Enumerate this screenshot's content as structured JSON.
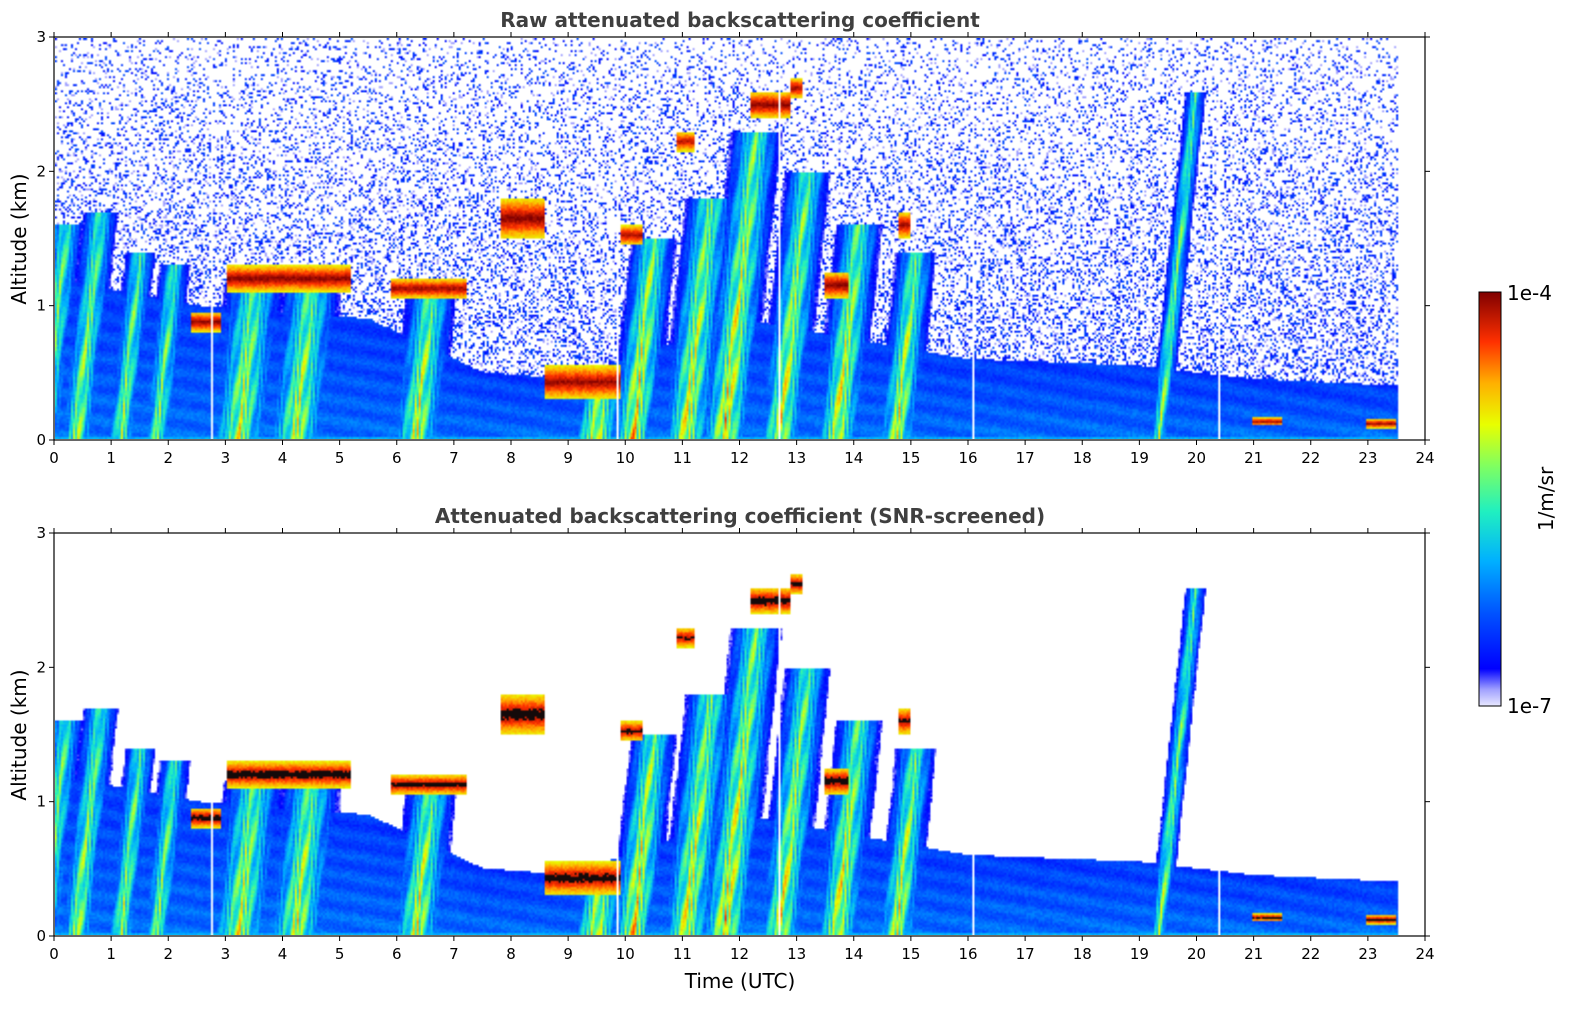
{
  "chart_data": [
    {
      "type": "heatmap",
      "title": "Raw attenuated backscattering coefficient",
      "xlabel": "",
      "ylabel": "Altitude (km)",
      "xlim": [
        0,
        24
      ],
      "ylim": [
        0,
        3
      ],
      "xticks": [
        "0",
        "1",
        "2",
        "3",
        "4",
        "5",
        "6",
        "7",
        "8",
        "9",
        "10",
        "11",
        "12",
        "13",
        "14",
        "15",
        "16",
        "17",
        "18",
        "19",
        "20",
        "21",
        "22",
        "23",
        "24"
      ],
      "yticks": [
        "0",
        "1",
        "2",
        "3"
      ],
      "grid": false,
      "noise": "high",
      "snr_screened": false
    },
    {
      "type": "heatmap",
      "title": "Attenuated backscattering coefficient (SNR-screened)",
      "xlabel": "Time (UTC)",
      "ylabel": "Altitude (km)",
      "xlim": [
        0,
        24
      ],
      "ylim": [
        0,
        3
      ],
      "xticks": [
        "0",
        "1",
        "2",
        "3",
        "4",
        "5",
        "6",
        "7",
        "8",
        "9",
        "10",
        "11",
        "12",
        "13",
        "14",
        "15",
        "16",
        "17",
        "18",
        "19",
        "20",
        "21",
        "22",
        "23",
        "24"
      ],
      "yticks": [
        "0",
        "1",
        "2",
        "3"
      ],
      "grid": false,
      "noise": "screened",
      "snr_screened": true
    }
  ],
  "colorbar": {
    "label": "1/m/sr",
    "min_label": "1e-7",
    "max_label": "1e-4",
    "scale": "log",
    "colormap": "jet"
  },
  "field": {
    "data_end_hour": 23.55,
    "gaps_hours": [
      2.75,
      9.85,
      12.7,
      16.1,
      20.4
    ],
    "boundary_layer_top_km": [
      [
        0,
        1.2
      ],
      [
        2.5,
        1.0
      ],
      [
        5.5,
        0.9
      ],
      [
        7.5,
        0.5
      ],
      [
        9,
        0.45
      ],
      [
        12,
        0.9
      ],
      [
        16,
        0.6
      ],
      [
        19,
        0.55
      ],
      [
        21,
        0.45
      ],
      [
        23.5,
        0.4
      ]
    ],
    "clouds": [
      {
        "t0": 2.4,
        "t1": 2.9,
        "z0": 0.8,
        "z1": 0.95,
        "intensity": 1.0
      },
      {
        "t0": 3.0,
        "t1": 5.2,
        "z0": 1.1,
        "z1": 1.3,
        "intensity": 1.0
      },
      {
        "t0": 5.9,
        "t1": 7.2,
        "z0": 1.05,
        "z1": 1.2,
        "intensity": 0.95
      },
      {
        "t0": 7.8,
        "t1": 8.6,
        "z0": 1.5,
        "z1": 1.8,
        "intensity": 1.0
      },
      {
        "t0": 8.6,
        "t1": 9.9,
        "z0": 0.3,
        "z1": 0.55,
        "intensity": 0.95
      },
      {
        "t0": 9.9,
        "t1": 10.3,
        "z0": 1.45,
        "z1": 1.6,
        "intensity": 0.9
      },
      {
        "t0": 10.9,
        "t1": 11.2,
        "z0": 2.15,
        "z1": 2.3,
        "intensity": 0.85
      },
      {
        "t0": 12.2,
        "t1": 12.9,
        "z0": 2.4,
        "z1": 2.6,
        "intensity": 1.0
      },
      {
        "t0": 12.9,
        "t1": 13.1,
        "z0": 2.55,
        "z1": 2.7,
        "intensity": 0.95
      },
      {
        "t0": 13.5,
        "t1": 13.9,
        "z0": 1.05,
        "z1": 1.25,
        "intensity": 1.0
      },
      {
        "t0": 14.8,
        "t1": 15.0,
        "z0": 1.5,
        "z1": 1.7,
        "intensity": 0.9
      },
      {
        "t0": 21.0,
        "t1": 21.5,
        "z0": 0.1,
        "z1": 0.16,
        "intensity": 0.9
      },
      {
        "t0": 23.0,
        "t1": 23.5,
        "z0": 0.08,
        "z1": 0.15,
        "intensity": 0.95
      }
    ],
    "plumes": [
      {
        "t": 0.2,
        "z": 1.6,
        "w": 0.35,
        "intensity": 0.6
      },
      {
        "t": 0.8,
        "z": 1.7,
        "w": 0.35,
        "intensity": 0.6
      },
      {
        "t": 1.5,
        "z": 1.4,
        "w": 0.3,
        "intensity": 0.55
      },
      {
        "t": 2.1,
        "z": 1.3,
        "w": 0.3,
        "intensity": 0.5
      },
      {
        "t": 3.5,
        "z": 1.15,
        "w": 0.6,
        "intensity": 0.7
      },
      {
        "t": 4.5,
        "z": 1.15,
        "w": 0.6,
        "intensity": 0.7
      },
      {
        "t": 6.6,
        "z": 1.1,
        "w": 0.5,
        "intensity": 0.75
      },
      {
        "t": 9.6,
        "z": 0.5,
        "w": 0.5,
        "intensity": 0.85
      },
      {
        "t": 10.5,
        "z": 1.5,
        "w": 0.45,
        "intensity": 0.9
      },
      {
        "t": 11.5,
        "z": 1.8,
        "w": 0.5,
        "intensity": 0.8
      },
      {
        "t": 12.3,
        "z": 2.3,
        "w": 0.5,
        "intensity": 0.85
      },
      {
        "t": 13.2,
        "z": 2.0,
        "w": 0.45,
        "intensity": 0.75
      },
      {
        "t": 14.1,
        "z": 1.6,
        "w": 0.45,
        "intensity": 0.8
      },
      {
        "t": 15.1,
        "z": 1.4,
        "w": 0.4,
        "intensity": 0.75
      },
      {
        "t": 20.0,
        "z": 2.6,
        "w": 0.2,
        "intensity": 0.5
      }
    ]
  }
}
